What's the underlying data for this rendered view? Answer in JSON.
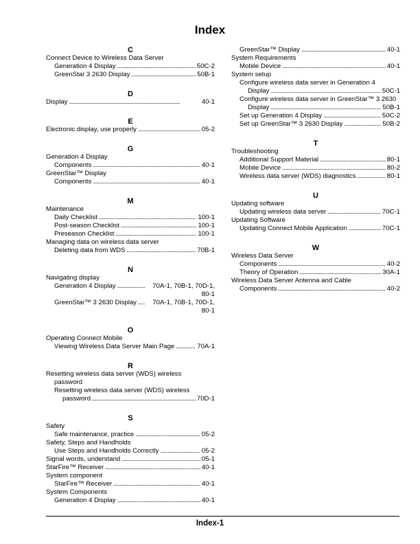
{
  "title": "Index",
  "footer": "Index-1",
  "columns": [
    [
      {
        "letter": "C",
        "entries": [
          {
            "level": 0,
            "text": "Connect Device to Wireless Data Server"
          },
          {
            "level": 1,
            "text": "Generation 4 Display",
            "page": "50C-2"
          },
          {
            "level": 1,
            "text": "GreenStar 3 2630 Display",
            "page": "50B-1"
          }
        ]
      },
      {
        "letter": "D",
        "entries": [
          {
            "level": 0,
            "text": "Display",
            "page": "40-1"
          }
        ]
      },
      {
        "letter": "E",
        "entries": [
          {
            "level": 0,
            "text": "Electronic display, use properly",
            "page": "05-2"
          }
        ]
      },
      {
        "letter": "G",
        "entries": [
          {
            "level": 0,
            "text": "Generation 4 Display"
          },
          {
            "level": 1,
            "text": "Components",
            "page": "40-1"
          },
          {
            "level": 0,
            "text": "GreenStar™ Display"
          },
          {
            "level": 1,
            "text": "Components",
            "page": "40-1"
          }
        ]
      },
      {
        "letter": "M",
        "entries": [
          {
            "level": 0,
            "text": "Maintenance"
          },
          {
            "level": 1,
            "text": "Daily Checklist",
            "page": "100-1"
          },
          {
            "level": 1,
            "text": "Post-season Checklist",
            "page": "100-1"
          },
          {
            "level": 1,
            "text": "Preseason Checklist",
            "page": "100-1"
          },
          {
            "level": 0,
            "text": "Managing data on wireless data server"
          },
          {
            "level": 1,
            "text": "Deleting data from WDS",
            "page": "70B-1"
          }
        ]
      },
      {
        "letter": "N",
        "entries": [
          {
            "level": 0,
            "text": "Navigating display"
          },
          {
            "level": 1,
            "text": "Generation 4 Display",
            "page": "70A-1, 70B-1, 70D-1, 80-1"
          },
          {
            "level": 1,
            "text": "GreenStar™ 3 2630 Display",
            "page": "70A-1, 70B-1, 70D-1, 80-1"
          }
        ]
      },
      {
        "letter": "O",
        "entries": [
          {
            "level": 0,
            "text": "Operating Connect Mobile"
          },
          {
            "level": 1,
            "text": "Viewing Wireless Data Server Main Page",
            "page": "70A-1"
          }
        ]
      },
      {
        "letter": "R",
        "entries": [
          {
            "level": 0,
            "text": "Resetting wireless data server (WDS) wireless"
          },
          {
            "level": 1,
            "text": "password"
          },
          {
            "level": 1,
            "text": "Resetting wireless data server (WDS) wireless"
          },
          {
            "level": 2,
            "text": "password",
            "page": "70D-1"
          }
        ]
      },
      {
        "letter": "S",
        "entries": [
          {
            "level": 0,
            "text": "Safety"
          },
          {
            "level": 1,
            "text": "Safe maintenance, practice",
            "page": "05-2"
          },
          {
            "level": 0,
            "text": "Safety, Steps and Handholds"
          },
          {
            "level": 1,
            "text": "Use Steps and Handholds Correctly",
            "page": "05-2"
          },
          {
            "level": 0,
            "text": "Signal words, understand",
            "page": "05-1"
          },
          {
            "level": 0,
            "text": "StarFire™ Receiver",
            "page": "40-1"
          },
          {
            "level": 0,
            "text": "System component"
          },
          {
            "level": 1,
            "text": "StarFire™ Receiver",
            "page": "40-1"
          },
          {
            "level": 0,
            "text": "System Components"
          },
          {
            "level": 1,
            "text": "Generation 4 Display",
            "page": "40-1"
          }
        ]
      }
    ],
    [
      {
        "letter": "",
        "entries": [
          {
            "level": 1,
            "text": "GreenStar™ Display",
            "page": "40-1"
          },
          {
            "level": 0,
            "text": "System Requirements"
          },
          {
            "level": 1,
            "text": "Mobile Device",
            "page": "40-1"
          },
          {
            "level": 0,
            "text": "System setup"
          },
          {
            "level": 1,
            "text": "Configure wireless data server in Generation 4"
          },
          {
            "level": 2,
            "text": "Display",
            "page": "50C-1"
          },
          {
            "level": 1,
            "text": "Configure wireless data server in GreenStar™ 3 2630"
          },
          {
            "level": 2,
            "text": "Display",
            "page": "50B-1"
          },
          {
            "level": 1,
            "text": "Set up Generation 4 Display",
            "page": "50C-2"
          },
          {
            "level": 1,
            "text": "Set up GreenStar™ 3 2630 Display",
            "page": "50B-2"
          }
        ]
      },
      {
        "letter": "T",
        "entries": [
          {
            "level": 0,
            "text": "Troubleshooting"
          },
          {
            "level": 1,
            "text": "Additional Support Material",
            "page": "80-1"
          },
          {
            "level": 1,
            "text": "Mobile Device",
            "page": "80-2"
          },
          {
            "level": 1,
            "text": "Wireless data server (WDS) diagnostics",
            "page": "80-1"
          }
        ]
      },
      {
        "letter": "U",
        "entries": [
          {
            "level": 0,
            "text": "Updating software"
          },
          {
            "level": 1,
            "text": "Updating wireless data server",
            "page": "70C-1"
          },
          {
            "level": 0,
            "text": "Updating Software"
          },
          {
            "level": 1,
            "text": "Updating Connect Mobile Application",
            "page": "70C-1"
          }
        ]
      },
      {
        "letter": "W",
        "entries": [
          {
            "level": 0,
            "text": "Wireless Data Server"
          },
          {
            "level": 1,
            "text": "Components",
            "page": "40-2"
          },
          {
            "level": 1,
            "text": "Theory of Operation",
            "page": "30A-1"
          },
          {
            "level": 0,
            "text": "Wireless Data Server Antenna and Cable"
          },
          {
            "level": 1,
            "text": "Components",
            "page": "40-2"
          }
        ]
      }
    ]
  ]
}
